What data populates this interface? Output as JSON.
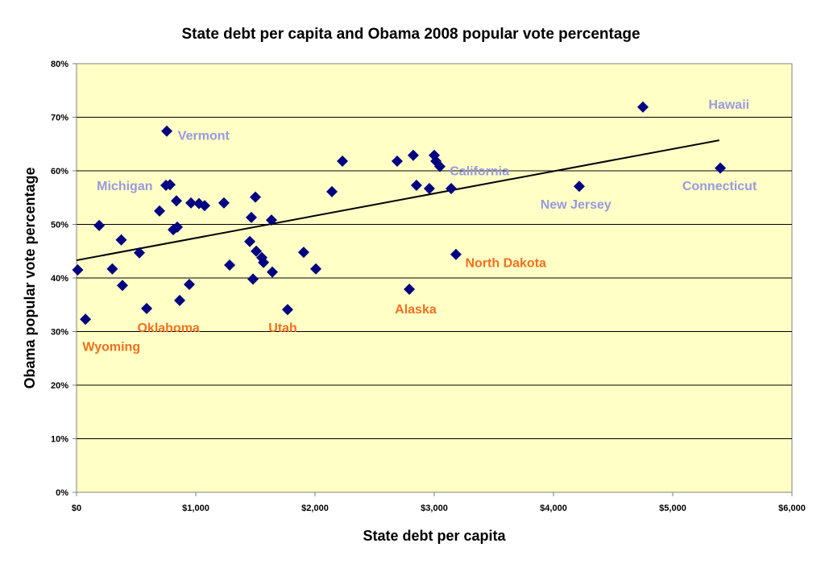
{
  "chart_data": {
    "type": "scatter",
    "title": "State debt per capita and Obama 2008 popular vote percentage",
    "xlabel": "State debt per capita",
    "ylabel": "Obama popular vote percentage",
    "xlim": [
      0,
      6000
    ],
    "ylim": [
      0,
      80
    ],
    "x_ticks": [
      "$0",
      "$1,000",
      "$2,000",
      "$3,000",
      "$4,000",
      "$5,000",
      "$6,000"
    ],
    "y_ticks": [
      "0%",
      "10%",
      "20%",
      "30%",
      "40%",
      "50%",
      "60%",
      "70%",
      "80%"
    ],
    "grid": "horizontal",
    "colors": {
      "plot_bg": "#ffffc6",
      "marker": "#000080",
      "label_blue": "#9999e0",
      "label_orange": "#f07020",
      "trend": "#000000"
    },
    "points": [
      [
        10,
        41.5
      ],
      [
        75,
        32.3
      ],
      [
        190,
        49.8
      ],
      [
        300,
        41.7
      ],
      [
        375,
        47.1
      ],
      [
        385,
        38.6
      ],
      [
        527,
        44.7
      ],
      [
        588,
        34.3
      ],
      [
        696,
        52.5
      ],
      [
        757,
        67.4
      ],
      [
        750,
        57.3
      ],
      [
        784,
        57.4
      ],
      [
        811,
        49
      ],
      [
        845,
        49.5
      ],
      [
        838,
        54.4
      ],
      [
        865,
        35.8
      ],
      [
        946,
        38.8
      ],
      [
        960,
        54
      ],
      [
        1027,
        53.9
      ],
      [
        1074,
        53.5
      ],
      [
        1236,
        54
      ],
      [
        1284,
        42.4
      ],
      [
        1466,
        51.3
      ],
      [
        1453,
        46.8
      ],
      [
        1500,
        55.1
      ],
      [
        1480,
        39.8
      ],
      [
        1507,
        45
      ],
      [
        1554,
        43.8
      ],
      [
        1568,
        42.9
      ],
      [
        1635,
        50.8
      ],
      [
        1642,
        41.1
      ],
      [
        1770,
        34.1
      ],
      [
        1905,
        44.8
      ],
      [
        2007,
        41.7
      ],
      [
        2142,
        56.1
      ],
      [
        2230,
        61.8
      ],
      [
        2689,
        61.8
      ],
      [
        2791,
        37.9
      ],
      [
        2824,
        62.9
      ],
      [
        2851,
        57.3
      ],
      [
        2959,
        56.7
      ],
      [
        3000,
        62.9
      ],
      [
        3014,
        61.8
      ],
      [
        3047,
        60.8
      ],
      [
        3142,
        56.7
      ],
      [
        3182,
        44.4
      ],
      [
        4216,
        57.1
      ],
      [
        4750,
        71.9
      ],
      [
        5399,
        60.5
      ]
    ],
    "trendline": {
      "x": [
        0,
        5390
      ],
      "y": [
        43.3,
        65.7
      ]
    },
    "annotations": [
      {
        "text": "Hawaii",
        "x": 5300,
        "y": 72.5,
        "color": "blue"
      },
      {
        "text": "Connecticut",
        "x": 5080,
        "y": 57.3,
        "color": "blue"
      },
      {
        "text": "New Jersey",
        "x": 3890,
        "y": 53.8,
        "color": "blue"
      },
      {
        "text": "California",
        "x": 3130,
        "y": 60.1,
        "color": "blue"
      },
      {
        "text": "Vermont",
        "x": 850,
        "y": 66.7,
        "color": "blue"
      },
      {
        "text": "Michigan",
        "x": 170,
        "y": 57.3,
        "color": "blue"
      },
      {
        "text": "North Dakota",
        "x": 3260,
        "y": 42.9,
        "color": "orange"
      },
      {
        "text": "Alaska",
        "x": 2670,
        "y": 34.3,
        "color": "orange"
      },
      {
        "text": "Utah",
        "x": 1610,
        "y": 30.8,
        "color": "orange"
      },
      {
        "text": "Oklahoma",
        "x": 510,
        "y": 30.8,
        "color": "orange"
      },
      {
        "text": "Wyoming",
        "x": 50,
        "y": 27.3,
        "color": "orange"
      }
    ]
  }
}
